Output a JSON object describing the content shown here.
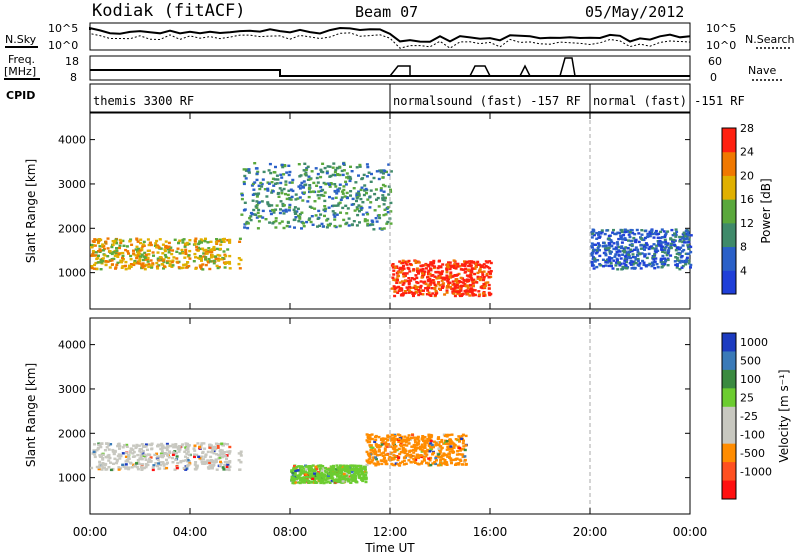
{
  "header": {
    "station": "Kodiak (fitACF)",
    "beam": "Beam 07",
    "date": "05/May/2012"
  },
  "top_panels": {
    "nsky_label": "N.Sky",
    "nsearch_label": "N.Search",
    "nsky_ticks": [
      "10^5",
      "10^0"
    ],
    "nsearch_ticks": [
      "10^5",
      "10^0"
    ],
    "freq_label": "Freq.",
    "freq_unit": "[MHz]",
    "freq_ticks": [
      "18",
      "8"
    ],
    "nave_label": "Nave",
    "nave_ticks": [
      "60",
      "0"
    ],
    "cpid_label": "CPID",
    "cpid_segments": [
      {
        "name": "themis 3300 RF",
        "start": 0,
        "end": 12
      },
      {
        "name": "normalsound (fast) -157 RF",
        "start": 12,
        "end": 20
      },
      {
        "name": "normal (fast) -151 RF",
        "start": 20,
        "end": 24
      }
    ]
  },
  "colors": {
    "power": [
      "#1f3fd8",
      "#2a60c8",
      "#3f8a6a",
      "#5aa83c",
      "#e0b000",
      "#f07800",
      "#ff2010"
    ],
    "velocity": [
      "#1c3bc0",
      "#3a7ab8",
      "#3a8a40",
      "#6ccc30",
      "#c8c8c0",
      "#c8c8c0",
      "#ff8c00",
      "#ff5020",
      "#ff1010"
    ]
  },
  "chart_data": [
    {
      "type": "heatmap",
      "title": "Power",
      "xlabel": "Time UT",
      "ylabel": "Slant Range [km]",
      "xlim": [
        0,
        24
      ],
      "ylim": [
        180,
        4600
      ],
      "x_ticks": [
        "00:00",
        "04:00",
        "08:00",
        "12:00",
        "16:00",
        "20:00",
        "00:00"
      ],
      "y_ticks": [
        1000,
        2000,
        3000,
        4000
      ],
      "colorbar": {
        "label": "Power [dB]",
        "ticks": [
          4,
          8,
          12,
          16,
          20,
          24,
          28
        ]
      },
      "features": [
        {
          "name": "early band",
          "t0": 0,
          "t1": 6,
          "r0": 1100,
          "r1": 1800,
          "level": 20
        },
        {
          "name": "upper patches",
          "t0": 6,
          "t1": 12,
          "r0": 2000,
          "r1": 3500,
          "level": 12
        },
        {
          "name": "descending trace",
          "t0": 12,
          "t1": 16,
          "r0": 500,
          "r1": 1300,
          "level": 28
        },
        {
          "name": "late band",
          "t0": 20,
          "t1": 24,
          "r0": 1100,
          "r1": 2000,
          "level": 8
        }
      ]
    },
    {
      "type": "heatmap",
      "title": "Velocity",
      "xlabel": "Time UT",
      "ylabel": "Slant Range [km]",
      "xlim": [
        0,
        24
      ],
      "ylim": [
        180,
        4600
      ],
      "x_ticks": [
        "00:00",
        "04:00",
        "08:00",
        "12:00",
        "16:00",
        "20:00",
        "00:00"
      ],
      "y_ticks": [
        1000,
        2000,
        3000,
        4000
      ],
      "colorbar": {
        "label": "Velocity [m s⁻¹]",
        "ticks": [
          1000,
          500,
          100,
          25,
          -25,
          -100,
          -500,
          -1000
        ]
      },
      "features": [
        {
          "name": "ground scatter",
          "t0": 0,
          "t1": 6,
          "r0": 1200,
          "r1": 1800,
          "level": 0
        },
        {
          "name": "green region",
          "t0": 8,
          "t1": 11,
          "r0": 900,
          "r1": 1300,
          "level": 100
        },
        {
          "name": "orange region",
          "t0": 11,
          "t1": 15,
          "r0": 1300,
          "r1": 2000,
          "level": -100
        }
      ]
    }
  ]
}
